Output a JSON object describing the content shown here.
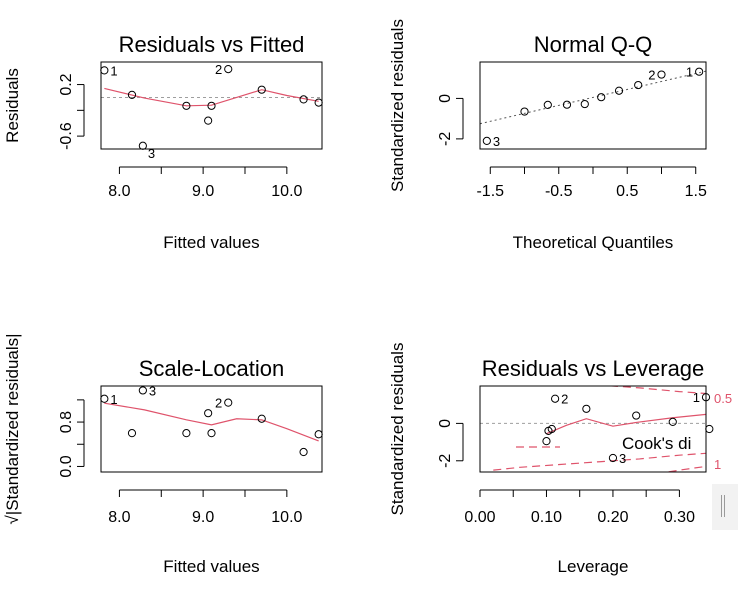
{
  "colors": {
    "smooth_line": "#DF536B",
    "reference_line": "#9E9E9E",
    "points": "#000000"
  },
  "chart_data": [
    {
      "type": "scatter",
      "title": "Residuals vs Fitted",
      "xlabel": "Fitted values",
      "ylabel": "Residuals",
      "xlim": [
        7.78,
        10.42
      ],
      "ylim": [
        -0.8,
        0.55
      ],
      "xticks": [
        8.0,
        9.0,
        10.0
      ],
      "xtick_labels": [
        "8.0",
        "9.0",
        "10.0"
      ],
      "yticks": [
        -0.6,
        -0.2,
        0.2
      ],
      "ytick_labels": [
        "-0.6",
        "",
        "0.2"
      ],
      "points": {
        "x": [
          7.82,
          8.15,
          8.28,
          8.8,
          9.06,
          9.1,
          9.3,
          9.7,
          10.2,
          10.38
        ],
        "y": [
          0.42,
          0.04,
          -0.75,
          -0.13,
          -0.36,
          -0.13,
          0.44,
          0.12,
          -0.03,
          -0.08
        ]
      },
      "smooth": {
        "x": [
          7.82,
          8.3,
          8.8,
          9.1,
          9.4,
          9.7,
          10.0,
          10.38
        ],
        "y": [
          0.14,
          -0.01,
          -0.13,
          -0.12,
          0.0,
          0.12,
          0.03,
          -0.06
        ]
      },
      "hline": 0,
      "labels": [
        {
          "text": "1",
          "x": 7.82,
          "y": 0.42,
          "pos": "right"
        },
        {
          "text": "2",
          "x": 9.3,
          "y": 0.44,
          "pos": "left"
        },
        {
          "text": "3",
          "x": 8.28,
          "y": -0.75,
          "pos": "below-right"
        }
      ]
    },
    {
      "type": "scatter",
      "title": "Normal Q-Q",
      "xlabel": "Theoretical Quantiles",
      "ylabel": "Standardized residuals",
      "xlim": [
        -1.65,
        1.65
      ],
      "ylim": [
        -2.5,
        1.8
      ],
      "xticks": [
        -1.5,
        -0.5,
        0.5,
        1.5
      ],
      "xtick_labels": [
        "-1.5",
        "-0.5",
        "0.5",
        "1.5"
      ],
      "yticks": [
        -2,
        0
      ],
      "ytick_labels": [
        "-2",
        "0"
      ],
      "points": {
        "x": [
          -1.55,
          -1.0,
          -0.66,
          -0.38,
          -0.12,
          0.12,
          0.38,
          0.66,
          1.0,
          1.55
        ],
        "y": [
          -2.1,
          -0.65,
          -0.32,
          -0.31,
          -0.28,
          0.06,
          0.38,
          0.66,
          1.18,
          1.32
        ]
      },
      "refline": {
        "x": [
          -1.65,
          1.65
        ],
        "y": [
          -1.25,
          1.35
        ]
      },
      "labels": [
        {
          "text": "3",
          "x": -1.55,
          "y": -2.1,
          "pos": "right"
        },
        {
          "text": "2",
          "x": 1.0,
          "y": 1.18,
          "pos": "left"
        },
        {
          "text": "1",
          "x": 1.55,
          "y": 1.32,
          "pos": "left"
        }
      ]
    },
    {
      "type": "scatter",
      "title": "Scale-Location",
      "xlabel": "Fitted values",
      "ylabel": "√|Standardized residuals|",
      "xlim": [
        7.78,
        10.42
      ],
      "ylim": [
        -0.1,
        1.45
      ],
      "xticks": [
        8.0,
        9.0,
        10.0
      ],
      "xtick_labels": [
        "8.0",
        "9.0",
        "10.0"
      ],
      "yticks": [
        0.0,
        0.4,
        0.8,
        1.2
      ],
      "ytick_labels": [
        "0.0",
        "",
        "0.8",
        ""
      ],
      "points": {
        "x": [
          7.82,
          8.15,
          8.28,
          8.8,
          9.06,
          9.1,
          9.3,
          9.7,
          10.2,
          10.38
        ],
        "y": [
          1.22,
          0.6,
          1.37,
          0.6,
          0.96,
          0.6,
          1.15,
          0.86,
          0.26,
          0.58
        ]
      },
      "smooth": {
        "x": [
          7.82,
          8.3,
          8.8,
          9.1,
          9.4,
          9.7,
          10.0,
          10.38
        ],
        "y": [
          1.14,
          1.02,
          0.84,
          0.75,
          0.86,
          0.84,
          0.68,
          0.46
        ]
      },
      "labels": [
        {
          "text": "1",
          "x": 7.82,
          "y": 1.22,
          "pos": "right"
        },
        {
          "text": "3",
          "x": 8.28,
          "y": 1.37,
          "pos": "right"
        },
        {
          "text": "2",
          "x": 9.3,
          "y": 1.15,
          "pos": "left"
        }
      ]
    },
    {
      "type": "scatter",
      "title": "Residuals vs Leverage",
      "xlabel": "Leverage",
      "ylabel": "Standardized residuals",
      "xlim": [
        0.0,
        0.34
      ],
      "ylim": [
        -2.6,
        2.0
      ],
      "xticks": [
        0.0,
        0.1,
        0.2,
        0.3
      ],
      "xtick_labels": [
        "0.00",
        "0.10",
        "0.20",
        "0.30"
      ],
      "yticks": [
        -2,
        0
      ],
      "ytick_labels": [
        "-2",
        "0"
      ],
      "points": {
        "x": [
          0.1,
          0.103,
          0.108,
          0.113,
          0.16,
          0.2,
          0.235,
          0.29,
          0.34,
          0.345
        ],
        "y": [
          -0.95,
          -0.4,
          -0.3,
          1.32,
          0.78,
          -1.85,
          0.42,
          0.08,
          1.4,
          -0.3
        ]
      },
      "smooth": {
        "x": [
          0.1,
          0.13,
          0.16,
          0.2,
          0.235,
          0.29,
          0.345
        ],
        "y": [
          -0.55,
          -0.1,
          0.25,
          -0.15,
          0.05,
          0.3,
          0.5
        ]
      },
      "cook_contours": [
        {
          "level": "0.5",
          "x": [
            0.02,
            0.06,
            0.12,
            0.18,
            0.24,
            0.3,
            0.34
          ],
          "upper": [
            2.5,
            2.35,
            2.2,
            2.05,
            1.9,
            1.7,
            1.6
          ]
        },
        {
          "level": "1",
          "x": [
            0.13,
            0.18,
            0.24,
            0.3,
            0.34
          ],
          "upper": [
            3.6,
            3.2,
            2.85,
            2.5,
            2.3
          ]
        }
      ],
      "cook_legend": {
        "label": "Cook's distance",
        "visible_text": "Cook's di"
      },
      "hline": 0,
      "vline": 0,
      "labels": [
        {
          "text": "2",
          "x": 0.113,
          "y": 1.32,
          "pos": "right"
        },
        {
          "text": "3",
          "x": 0.2,
          "y": -1.85,
          "pos": "right"
        },
        {
          "text": "1",
          "x": 0.34,
          "y": 1.4,
          "pos": "left"
        }
      ]
    }
  ]
}
